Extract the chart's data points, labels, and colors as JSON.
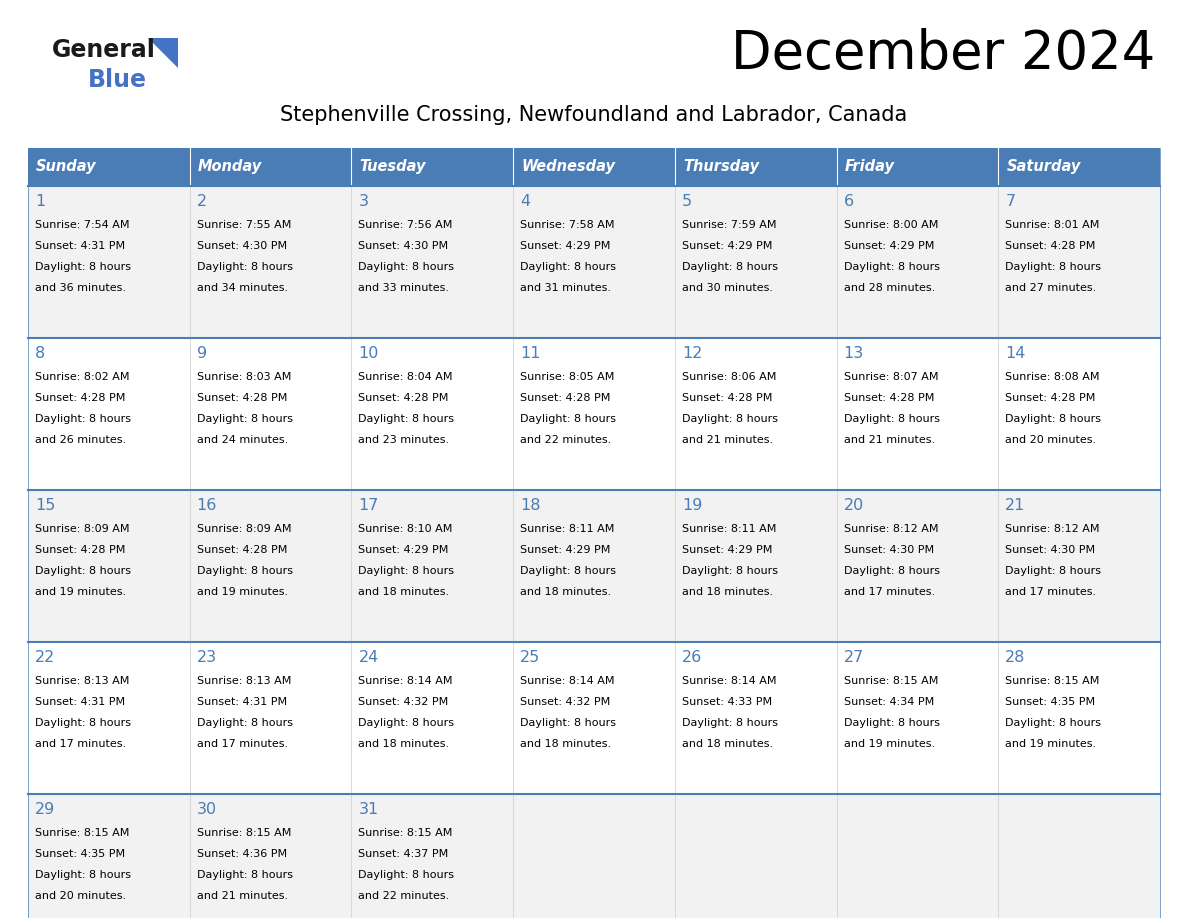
{
  "title": "December 2024",
  "subtitle": "Stephenville Crossing, Newfoundland and Labrador, Canada",
  "days_of_week": [
    "Sunday",
    "Monday",
    "Tuesday",
    "Wednesday",
    "Thursday",
    "Friday",
    "Saturday"
  ],
  "header_bg": "#4a7cb5",
  "header_text": "#FFFFFF",
  "row_bg_odd": "#F2F2F2",
  "row_bg_even": "#FFFFFF",
  "cell_text_color": "#000000",
  "day_num_color": "#4a7cb5",
  "border_color": "#4a7cb5",
  "calendar_data": [
    [
      {
        "day": 1,
        "sunrise": "7:54 AM",
        "sunset": "4:31 PM",
        "daylight": "8 hours and 36 minutes."
      },
      {
        "day": 2,
        "sunrise": "7:55 AM",
        "sunset": "4:30 PM",
        "daylight": "8 hours and 34 minutes."
      },
      {
        "day": 3,
        "sunrise": "7:56 AM",
        "sunset": "4:30 PM",
        "daylight": "8 hours and 33 minutes."
      },
      {
        "day": 4,
        "sunrise": "7:58 AM",
        "sunset": "4:29 PM",
        "daylight": "8 hours and 31 minutes."
      },
      {
        "day": 5,
        "sunrise": "7:59 AM",
        "sunset": "4:29 PM",
        "daylight": "8 hours and 30 minutes."
      },
      {
        "day": 6,
        "sunrise": "8:00 AM",
        "sunset": "4:29 PM",
        "daylight": "8 hours and 28 minutes."
      },
      {
        "day": 7,
        "sunrise": "8:01 AM",
        "sunset": "4:28 PM",
        "daylight": "8 hours and 27 minutes."
      }
    ],
    [
      {
        "day": 8,
        "sunrise": "8:02 AM",
        "sunset": "4:28 PM",
        "daylight": "8 hours and 26 minutes."
      },
      {
        "day": 9,
        "sunrise": "8:03 AM",
        "sunset": "4:28 PM",
        "daylight": "8 hours and 24 minutes."
      },
      {
        "day": 10,
        "sunrise": "8:04 AM",
        "sunset": "4:28 PM",
        "daylight": "8 hours and 23 minutes."
      },
      {
        "day": 11,
        "sunrise": "8:05 AM",
        "sunset": "4:28 PM",
        "daylight": "8 hours and 22 minutes."
      },
      {
        "day": 12,
        "sunrise": "8:06 AM",
        "sunset": "4:28 PM",
        "daylight": "8 hours and 21 minutes."
      },
      {
        "day": 13,
        "sunrise": "8:07 AM",
        "sunset": "4:28 PM",
        "daylight": "8 hours and 21 minutes."
      },
      {
        "day": 14,
        "sunrise": "8:08 AM",
        "sunset": "4:28 PM",
        "daylight": "8 hours and 20 minutes."
      }
    ],
    [
      {
        "day": 15,
        "sunrise": "8:09 AM",
        "sunset": "4:28 PM",
        "daylight": "8 hours and 19 minutes."
      },
      {
        "day": 16,
        "sunrise": "8:09 AM",
        "sunset": "4:28 PM",
        "daylight": "8 hours and 19 minutes."
      },
      {
        "day": 17,
        "sunrise": "8:10 AM",
        "sunset": "4:29 PM",
        "daylight": "8 hours and 18 minutes."
      },
      {
        "day": 18,
        "sunrise": "8:11 AM",
        "sunset": "4:29 PM",
        "daylight": "8 hours and 18 minutes."
      },
      {
        "day": 19,
        "sunrise": "8:11 AM",
        "sunset": "4:29 PM",
        "daylight": "8 hours and 18 minutes."
      },
      {
        "day": 20,
        "sunrise": "8:12 AM",
        "sunset": "4:30 PM",
        "daylight": "8 hours and 17 minutes."
      },
      {
        "day": 21,
        "sunrise": "8:12 AM",
        "sunset": "4:30 PM",
        "daylight": "8 hours and 17 minutes."
      }
    ],
    [
      {
        "day": 22,
        "sunrise": "8:13 AM",
        "sunset": "4:31 PM",
        "daylight": "8 hours and 17 minutes."
      },
      {
        "day": 23,
        "sunrise": "8:13 AM",
        "sunset": "4:31 PM",
        "daylight": "8 hours and 17 minutes."
      },
      {
        "day": 24,
        "sunrise": "8:14 AM",
        "sunset": "4:32 PM",
        "daylight": "8 hours and 18 minutes."
      },
      {
        "day": 25,
        "sunrise": "8:14 AM",
        "sunset": "4:32 PM",
        "daylight": "8 hours and 18 minutes."
      },
      {
        "day": 26,
        "sunrise": "8:14 AM",
        "sunset": "4:33 PM",
        "daylight": "8 hours and 18 minutes."
      },
      {
        "day": 27,
        "sunrise": "8:15 AM",
        "sunset": "4:34 PM",
        "daylight": "8 hours and 19 minutes."
      },
      {
        "day": 28,
        "sunrise": "8:15 AM",
        "sunset": "4:35 PM",
        "daylight": "8 hours and 19 minutes."
      }
    ],
    [
      {
        "day": 29,
        "sunrise": "8:15 AM",
        "sunset": "4:35 PM",
        "daylight": "8 hours and 20 minutes."
      },
      {
        "day": 30,
        "sunrise": "8:15 AM",
        "sunset": "4:36 PM",
        "daylight": "8 hours and 21 minutes."
      },
      {
        "day": 31,
        "sunrise": "8:15 AM",
        "sunset": "4:37 PM",
        "daylight": "8 hours and 22 minutes."
      },
      null,
      null,
      null,
      null
    ]
  ]
}
